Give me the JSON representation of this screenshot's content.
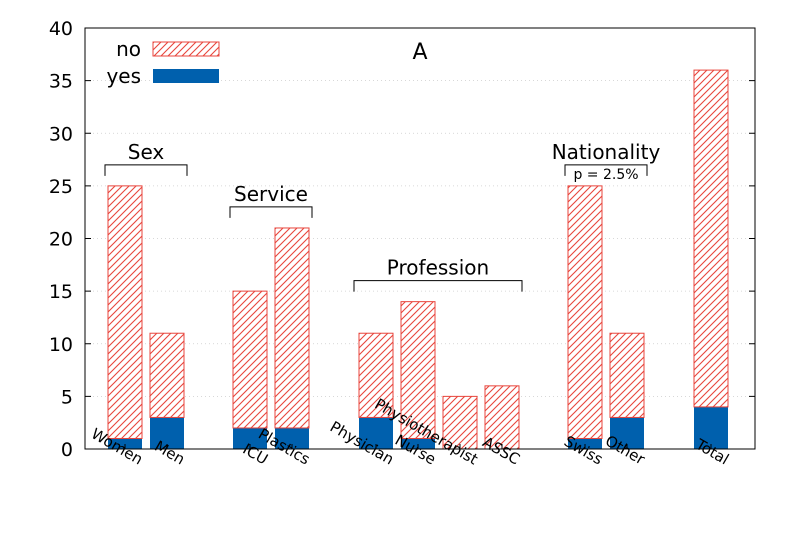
{
  "chart_data": {
    "type": "bar",
    "stacked": true,
    "title": "A",
    "xlabel": "",
    "ylabel": "",
    "ylim": [
      0,
      40
    ],
    "yticks": [
      0,
      5,
      10,
      15,
      20,
      25,
      30,
      35,
      40
    ],
    "grid": true,
    "legend_position": "top-left",
    "categories": [
      "Women",
      "Men",
      "ICU",
      "Plastics",
      "Physician",
      "Nurse",
      "Physiotherapist",
      "ASSC",
      "Swiss",
      "Other",
      "Total"
    ],
    "series": [
      {
        "name": "yes",
        "color": "#0060ad",
        "fill": "solid",
        "values": [
          1,
          3,
          2,
          2,
          3,
          1,
          0,
          0,
          1,
          3,
          4
        ]
      },
      {
        "name": "no",
        "color": "#e8453c",
        "fill": "hatched",
        "values": [
          24,
          8,
          13,
          19,
          8,
          13,
          5,
          6,
          24,
          8,
          32
        ]
      }
    ],
    "legend_order": [
      "no",
      "yes"
    ],
    "groups": [
      {
        "label": "Sex",
        "categories": [
          "Women",
          "Men"
        ],
        "bracket_level": 27
      },
      {
        "label": "Service",
        "categories": [
          "ICU",
          "Plastics"
        ],
        "bracket_level": 23
      },
      {
        "label": "Profession",
        "categories": [
          "Physician",
          "Nurse",
          "Physiotherapist",
          "ASSC"
        ],
        "bracket_level": 16
      },
      {
        "label": "Nationality",
        "categories": [
          "Swiss",
          "Other"
        ],
        "bracket_level": 27,
        "note": "p = 2.5%"
      }
    ]
  }
}
